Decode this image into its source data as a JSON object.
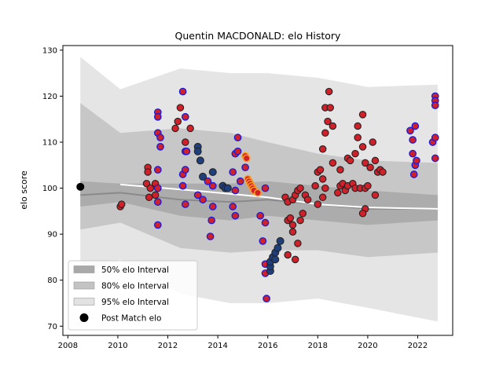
{
  "chart_data": {
    "type": "scatter",
    "title": "Quentin MACDONALD: elo History",
    "xlabel": "",
    "ylabel": "elo score",
    "xlim": [
      2007.8,
      2023.4
    ],
    "ylim": [
      68,
      131
    ],
    "x_ticks": [
      2008,
      2010,
      2012,
      2014,
      2016,
      2018,
      2020,
      2022
    ],
    "y_ticks": [
      70,
      80,
      90,
      100,
      110,
      120,
      130
    ],
    "legend": {
      "placement": "lower-left",
      "entries": [
        {
          "label": "50% elo Interval",
          "kind": "band",
          "color": "#a9a9a9"
        },
        {
          "label": "80% elo Interval",
          "kind": "band",
          "color": "#c3c3c3"
        },
        {
          "label": "95% elo Interval",
          "kind": "band",
          "color": "#e2e2e2"
        },
        {
          "label": "Post Match elo",
          "kind": "marker",
          "color": "#000000"
        }
      ]
    },
    "colors": {
      "band50": "#a9a9a9",
      "band80": "#c3c3c3",
      "band95": "#e2e2e2",
      "mean_line": "#8a8a8a",
      "white_line": "#ffffff",
      "red_fill": "#d0202a",
      "blue_edge": "#1a1adc",
      "navy_fill": "#1f3f7a",
      "orange_edge": "#ff9a20",
      "black_edge": "#222222"
    },
    "bands": {
      "x": [
        2008.5,
        2010.1,
        2012.5,
        2014.5,
        2016.0,
        2018.0,
        2020.0,
        2022.8
      ],
      "mean": [
        98.5,
        99.0,
        97.5,
        97.0,
        97.5,
        96.5,
        95.5,
        95.5
      ],
      "p50_low": [
        96.0,
        97.0,
        94.0,
        93.0,
        94.0,
        93.0,
        92.0,
        93.0
      ],
      "p50_high": [
        101.5,
        101.0,
        101.0,
        101.0,
        101.5,
        100.5,
        99.5,
        98.5
      ],
      "p80_low": [
        91.0,
        92.5,
        87.0,
        86.0,
        86.5,
        86.5,
        85.0,
        86.0
      ],
      "p80_high": [
        118.5,
        112.0,
        113.0,
        112.0,
        110.0,
        107.5,
        106.0,
        105.5
      ],
      "p95_low": [
        81.0,
        84.5,
        77.0,
        75.0,
        75.0,
        76.0,
        74.0,
        71.0
      ],
      "p95_high": [
        128.5,
        121.5,
        126.0,
        125.0,
        125.0,
        124.0,
        122.0,
        122.5
      ]
    },
    "white_line": {
      "x": [
        2010.1,
        2013.0,
        2016.0,
        2018.0,
        2020.0,
        2022.8
      ],
      "y": [
        100.8,
        99.5,
        98.0,
        96.5,
        95.8,
        95.5
      ]
    },
    "series": [
      {
        "style": "black",
        "points": [
          [
            2008.5,
            100.3
          ]
        ]
      },
      {
        "style": "red-dark",
        "points": [
          [
            2010.1,
            96.0
          ],
          [
            2010.15,
            96.5
          ],
          [
            2011.2,
            104.5
          ],
          [
            2011.2,
            103.5
          ],
          [
            2011.15,
            101.0
          ],
          [
            2011.3,
            100.0
          ],
          [
            2011.25,
            98.0
          ],
          [
            2011.5,
            101.0
          ],
          [
            2011.5,
            98.5
          ],
          [
            2011.6,
            100.0
          ],
          [
            2012.3,
            113.0
          ],
          [
            2012.4,
            114.5
          ],
          [
            2012.5,
            117.5
          ],
          [
            2012.7,
            110.0
          ],
          [
            2012.9,
            113.0
          ],
          [
            2016.7,
            98.0
          ],
          [
            2016.8,
            97.0
          ],
          [
            2016.8,
            93.0
          ],
          [
            2016.9,
            93.5
          ],
          [
            2017.0,
            92.0
          ],
          [
            2017.0,
            97.5
          ],
          [
            2017.1,
            98.5
          ],
          [
            2017.2,
            99.5
          ],
          [
            2017.3,
            100.0
          ],
          [
            2017.0,
            90.5
          ],
          [
            2017.2,
            88.0
          ],
          [
            2017.3,
            93.0
          ],
          [
            2017.4,
            94.5
          ],
          [
            2017.5,
            98.5
          ],
          [
            2017.6,
            97.5
          ],
          [
            2016.8,
            85.5
          ],
          [
            2017.1,
            84.5
          ],
          [
            2017.9,
            100.5
          ],
          [
            2018.0,
            103.5
          ],
          [
            2018.1,
            104.0
          ],
          [
            2018.2,
            102.0
          ],
          [
            2018.0,
            96.5
          ],
          [
            2018.2,
            98.0
          ],
          [
            2018.3,
            100.0
          ],
          [
            2018.2,
            108.5
          ],
          [
            2018.3,
            112.0
          ],
          [
            2018.3,
            117.5
          ],
          [
            2018.4,
            114.5
          ],
          [
            2018.45,
            121.0
          ],
          [
            2018.5,
            117.5
          ],
          [
            2018.6,
            113.5
          ],
          [
            2018.8,
            99.0
          ],
          [
            2018.9,
            100.5
          ],
          [
            2018.9,
            104.0
          ],
          [
            2019.0,
            101.0
          ],
          [
            2019.1,
            99.5
          ],
          [
            2019.2,
            100.5
          ],
          [
            2019.2,
            106.5
          ],
          [
            2019.3,
            106.0
          ],
          [
            2019.4,
            101.0
          ],
          [
            2019.5,
            100.0
          ],
          [
            2019.5,
            107.5
          ],
          [
            2019.6,
            111.0
          ],
          [
            2019.6,
            113.5
          ],
          [
            2019.7,
            100.0
          ],
          [
            2019.8,
            109.0
          ],
          [
            2019.9,
            105.5
          ],
          [
            2019.9,
            100.0
          ],
          [
            2019.9,
            95.5
          ],
          [
            2020.0,
            100.5
          ],
          [
            2020.1,
            104.5
          ],
          [
            2020.2,
            110.0
          ],
          [
            2020.3,
            106.0
          ],
          [
            2020.3,
            98.5
          ],
          [
            2020.4,
            103.5
          ],
          [
            2020.5,
            104.0
          ],
          [
            2020.6,
            103.5
          ],
          [
            2018.6,
            105.5
          ],
          [
            2019.8,
            94.5
          ],
          [
            2019.8,
            116.0
          ]
        ]
      },
      {
        "style": "red-blue",
        "points": [
          [
            2011.6,
            116.5
          ],
          [
            2011.6,
            115.5
          ],
          [
            2011.6,
            112.0
          ],
          [
            2011.7,
            111.0
          ],
          [
            2011.7,
            109.0
          ],
          [
            2011.6,
            104.0
          ],
          [
            2011.6,
            100.0
          ],
          [
            2011.6,
            97.0
          ],
          [
            2011.6,
            92.0
          ],
          [
            2012.6,
            121.0
          ],
          [
            2012.7,
            115.5
          ],
          [
            2012.6,
            103.0
          ],
          [
            2012.7,
            104.0
          ],
          [
            2012.6,
            100.5
          ],
          [
            2012.7,
            108.0
          ],
          [
            2012.75,
            108.0
          ],
          [
            2012.7,
            96.5
          ],
          [
            2013.2,
            98.5
          ],
          [
            2013.4,
            97.5
          ],
          [
            2013.6,
            101.5
          ],
          [
            2013.7,
            89.5
          ],
          [
            2013.75,
            93.0
          ],
          [
            2013.8,
            96.0
          ],
          [
            2013.8,
            100.5
          ],
          [
            2014.6,
            103.5
          ],
          [
            2014.7,
            107.5
          ],
          [
            2014.8,
            108.0
          ],
          [
            2014.8,
            111.0
          ],
          [
            2014.7,
            94.0
          ],
          [
            2014.6,
            96.0
          ],
          [
            2014.7,
            99.5
          ],
          [
            2014.9,
            101.5
          ],
          [
            2015.1,
            104.5
          ],
          [
            2015.7,
            94.0
          ],
          [
            2015.8,
            88.5
          ],
          [
            2015.9,
            83.5
          ],
          [
            2015.9,
            81.5
          ],
          [
            2015.9,
            92.5
          ],
          [
            2015.95,
            76.0
          ],
          [
            2021.7,
            112.5
          ],
          [
            2021.8,
            110.5
          ],
          [
            2021.8,
            107.5
          ],
          [
            2021.85,
            103.0
          ],
          [
            2021.9,
            105.0
          ],
          [
            2021.9,
            113.5
          ],
          [
            2021.95,
            106.0
          ],
          [
            2022.6,
            110.0
          ],
          [
            2022.7,
            120.0
          ],
          [
            2022.7,
            119.0
          ],
          [
            2022.7,
            118.0
          ],
          [
            2022.7,
            106.5
          ],
          [
            2022.7,
            111.0
          ],
          [
            2015.9,
            100.0
          ]
        ]
      },
      {
        "style": "navy",
        "points": [
          [
            2013.2,
            109.0
          ],
          [
            2013.2,
            108.0
          ],
          [
            2013.3,
            106.0
          ],
          [
            2013.4,
            102.5
          ],
          [
            2013.8,
            103.5
          ],
          [
            2014.2,
            100.5
          ],
          [
            2014.3,
            100.0
          ],
          [
            2014.4,
            100.0
          ],
          [
            2016.1,
            82.0
          ],
          [
            2016.1,
            83.0
          ],
          [
            2016.1,
            84.0
          ],
          [
            2016.2,
            85.0
          ],
          [
            2016.3,
            86.0
          ],
          [
            2016.3,
            84.5
          ],
          [
            2016.4,
            87.0
          ],
          [
            2016.5,
            88.5
          ]
        ]
      },
      {
        "style": "orange",
        "points": [
          [
            2015.1,
            107.0
          ],
          [
            2015.15,
            106.5
          ],
          [
            2015.2,
            102.0
          ],
          [
            2015.25,
            101.5
          ],
          [
            2015.3,
            101.0
          ],
          [
            2015.35,
            100.5
          ],
          [
            2015.4,
            100.0
          ],
          [
            2015.45,
            99.5
          ],
          [
            2015.6,
            99.0
          ]
        ]
      }
    ]
  }
}
